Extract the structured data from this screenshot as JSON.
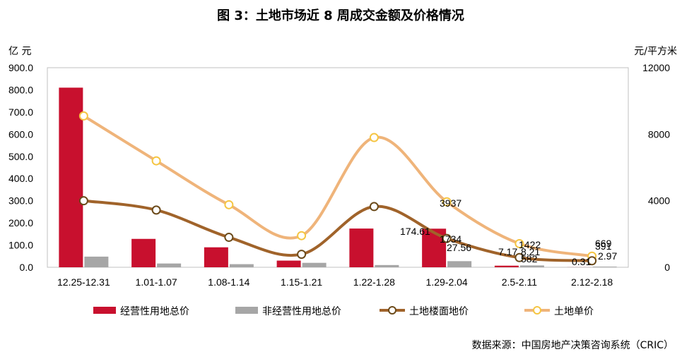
{
  "chart_data": {
    "type": "bar",
    "title": "图 3：土地市场近 8 周成交金额及价格情况",
    "ylabel_left": "亿 元",
    "ylabel_right": "元/平方米",
    "ylim_left": [
      0,
      900
    ],
    "ylim_right": [
      0,
      12000
    ],
    "yticks_left": [
      "0.0",
      "100.0",
      "200.0",
      "300.0",
      "400.0",
      "500.0",
      "600.0",
      "700.0",
      "800.0",
      "900.0"
    ],
    "yticks_right": [
      "0",
      "4000",
      "8000",
      "12000"
    ],
    "categories": [
      "12.25-12.31",
      "1.01-1.07",
      "1.08-1.14",
      "1.15-1.21",
      "1.22-1.28",
      "1.29-2.04",
      "2.5-2.11",
      "2.12-2.18"
    ],
    "series": [
      {
        "name": "经营性用地总价",
        "type": "bar",
        "axis": "left",
        "color": "#c8102e",
        "values": [
          810,
          128,
          90,
          30,
          174.61,
          174,
          7.17,
          0.31
        ]
      },
      {
        "name": "非经营性用地总价",
        "type": "bar",
        "axis": "left",
        "color": "#a6a6a6",
        "values": [
          48,
          17,
          14,
          20,
          10,
          27.56,
          8.21,
          2.97
        ]
      },
      {
        "name": "土地楼面地价",
        "type": "line",
        "axis": "right",
        "color": "#a0632a",
        "values": [
          4000,
          3440,
          1800,
          780,
          3650,
          1734,
          582,
          391
        ]
      },
      {
        "name": "土地单价",
        "type": "line",
        "axis": "right",
        "color": "#efb47a",
        "values": [
          9100,
          6400,
          3760,
          1900,
          7800,
          3937,
          1422,
          669
        ]
      }
    ],
    "data_labels": [
      "174.61",
      "3937",
      "1734",
      "27.56",
      "1422",
      "7.17",
      "8.21",
      "582",
      "669",
      "391",
      "2.97",
      "0.31"
    ],
    "grid": false,
    "legend_position": "bottom"
  },
  "source_note": "数据来源：中国房地产决策咨询系统（CRIC）"
}
